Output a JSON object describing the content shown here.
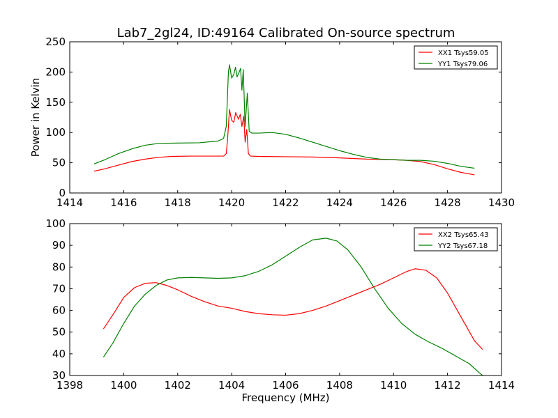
{
  "figure": {
    "title": "Lab7_2gl24, ID:49164 Calibrated On-source spectrum"
  },
  "chart_data": [
    {
      "type": "line",
      "title": "Lab7_2gl24, ID:49164 Calibrated On-source spectrum",
      "xlabel": "",
      "ylabel": "Power in Kelvin",
      "xlim": [
        1414,
        1430
      ],
      "ylim": [
        0,
        250
      ],
      "xticks": [
        1414,
        1416,
        1418,
        1420,
        1422,
        1424,
        1426,
        1428,
        1430
      ],
      "yticks": [
        0,
        50,
        100,
        150,
        200,
        250
      ],
      "grid": false,
      "legend_position": "top-right",
      "series": [
        {
          "name": "XX1 Tsys59.05",
          "color": "#ff0000",
          "points": [
            [
              1414.9,
              36
            ],
            [
              1415.3,
              40
            ],
            [
              1415.8,
              46
            ],
            [
              1416.3,
              52
            ],
            [
              1416.8,
              56
            ],
            [
              1417.3,
              59
            ],
            [
              1417.8,
              60.5
            ],
            [
              1418.5,
              61
            ],
            [
              1419.2,
              61
            ],
            [
              1419.7,
              61
            ],
            [
              1419.8,
              65
            ],
            [
              1419.85,
              90
            ],
            [
              1419.92,
              138
            ],
            [
              1420.0,
              120
            ],
            [
              1420.08,
              117
            ],
            [
              1420.15,
              133
            ],
            [
              1420.25,
              122
            ],
            [
              1420.32,
              130
            ],
            [
              1420.38,
              110
            ],
            [
              1420.45,
              127
            ],
            [
              1420.5,
              84
            ],
            [
              1420.56,
              105
            ],
            [
              1420.62,
              65
            ],
            [
              1420.7,
              61
            ],
            [
              1421.0,
              60.5
            ],
            [
              1422.0,
              60
            ],
            [
              1423.0,
              59.5
            ],
            [
              1424.0,
              58
            ],
            [
              1425.0,
              56
            ],
            [
              1426.0,
              55
            ],
            [
              1426.5,
              54
            ],
            [
              1427.0,
              52
            ],
            [
              1427.5,
              47
            ],
            [
              1428.0,
              40
            ],
            [
              1428.5,
              34
            ],
            [
              1429.0,
              30
            ]
          ]
        },
        {
          "name": "YY1 Tsys79.06",
          "color": "#008000",
          "points": [
            [
              1414.9,
              48
            ],
            [
              1415.3,
              55
            ],
            [
              1415.8,
              65
            ],
            [
              1416.3,
              73
            ],
            [
              1416.8,
              79
            ],
            [
              1417.3,
              82
            ],
            [
              1418.0,
              82.5
            ],
            [
              1418.8,
              83
            ],
            [
              1419.5,
              86
            ],
            [
              1419.7,
              90
            ],
            [
              1419.8,
              110
            ],
            [
              1419.88,
              200
            ],
            [
              1419.92,
              212
            ],
            [
              1420.0,
              190
            ],
            [
              1420.08,
              196
            ],
            [
              1420.14,
              208
            ],
            [
              1420.2,
              192
            ],
            [
              1420.28,
              200
            ],
            [
              1420.33,
              206
            ],
            [
              1420.38,
              170
            ],
            [
              1420.43,
              204
            ],
            [
              1420.5,
              110
            ],
            [
              1420.58,
              165
            ],
            [
              1420.65,
              102
            ],
            [
              1420.75,
              99
            ],
            [
              1421.0,
              99
            ],
            [
              1421.5,
              100
            ],
            [
              1422.0,
              97
            ],
            [
              1422.5,
              91
            ],
            [
              1423.0,
              84
            ],
            [
              1423.5,
              77
            ],
            [
              1424.0,
              70
            ],
            [
              1424.5,
              64
            ],
            [
              1425.0,
              59
            ],
            [
              1425.5,
              56
            ],
            [
              1426.0,
              55
            ],
            [
              1426.5,
              54
            ],
            [
              1427.0,
              54
            ],
            [
              1427.5,
              52.5
            ],
            [
              1428.0,
              49
            ],
            [
              1428.5,
              44
            ],
            [
              1429.0,
              41
            ]
          ]
        }
      ]
    },
    {
      "type": "line",
      "title": "",
      "xlabel": "Frequency (MHz)",
      "ylabel": "",
      "xlim": [
        1398,
        1414
      ],
      "ylim": [
        30,
        100
      ],
      "xticks": [
        1398,
        1400,
        1402,
        1404,
        1406,
        1408,
        1410,
        1412,
        1414
      ],
      "yticks": [
        30,
        40,
        50,
        60,
        70,
        80,
        90,
        100
      ],
      "grid": false,
      "legend_position": "top-right",
      "series": [
        {
          "name": "XX2 Tsys65.43",
          "color": "#ff0000",
          "points": [
            [
              1399.25,
              51.5
            ],
            [
              1399.6,
              58
            ],
            [
              1400.0,
              66
            ],
            [
              1400.4,
              70.5
            ],
            [
              1400.8,
              72.5
            ],
            [
              1401.2,
              72.8
            ],
            [
              1401.6,
              71.5
            ],
            [
              1402.0,
              69.5
            ],
            [
              1402.5,
              66.5
            ],
            [
              1403.0,
              64
            ],
            [
              1403.5,
              62
            ],
            [
              1404.0,
              61
            ],
            [
              1404.5,
              59.5
            ],
            [
              1405.0,
              58.5
            ],
            [
              1405.5,
              58
            ],
            [
              1406.0,
              57.8
            ],
            [
              1406.5,
              58.5
            ],
            [
              1407.0,
              60
            ],
            [
              1407.5,
              62
            ],
            [
              1408.0,
              64.5
            ],
            [
              1408.5,
              67
            ],
            [
              1409.0,
              69.5
            ],
            [
              1409.5,
              72
            ],
            [
              1410.0,
              75
            ],
            [
              1410.5,
              78
            ],
            [
              1410.8,
              79.2
            ],
            [
              1411.2,
              78.5
            ],
            [
              1411.6,
              75
            ],
            [
              1412.0,
              68
            ],
            [
              1412.5,
              57
            ],
            [
              1413.0,
              46
            ],
            [
              1413.3,
              42
            ]
          ]
        },
        {
          "name": "YY2 Tsys67.18",
          "color": "#008000",
          "points": [
            [
              1399.25,
              38.5
            ],
            [
              1399.6,
              45
            ],
            [
              1400.0,
              54
            ],
            [
              1400.4,
              62
            ],
            [
              1400.8,
              67.5
            ],
            [
              1401.2,
              71.5
            ],
            [
              1401.6,
              74
            ],
            [
              1402.0,
              75
            ],
            [
              1402.5,
              75.2
            ],
            [
              1403.0,
              75
            ],
            [
              1403.5,
              74.8
            ],
            [
              1404.0,
              75
            ],
            [
              1404.5,
              76
            ],
            [
              1405.0,
              78
            ],
            [
              1405.5,
              81
            ],
            [
              1406.0,
              85
            ],
            [
              1406.5,
              89
            ],
            [
              1407.0,
              92.5
            ],
            [
              1407.5,
              93.3
            ],
            [
              1407.9,
              92
            ],
            [
              1408.3,
              88
            ],
            [
              1408.8,
              80
            ],
            [
              1409.3,
              70
            ],
            [
              1409.8,
              61
            ],
            [
              1410.3,
              54
            ],
            [
              1410.8,
              49
            ],
            [
              1411.3,
              45.5
            ],
            [
              1411.8,
              42.5
            ],
            [
              1412.3,
              39
            ],
            [
              1412.8,
              35.5
            ],
            [
              1413.2,
              31
            ],
            [
              1413.3,
              30
            ]
          ]
        }
      ]
    }
  ]
}
